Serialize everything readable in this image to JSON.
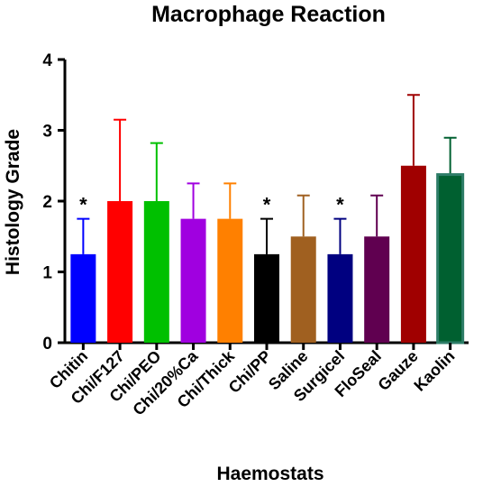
{
  "chart_data": {
    "type": "bar",
    "title": "Macrophage Reaction",
    "xlabel": "Haemostats",
    "ylabel": "Histology Grade",
    "ylim": [
      0,
      4
    ],
    "yticks": [
      "0",
      "1",
      "2",
      "3",
      "4"
    ],
    "grid": false,
    "legend": "none",
    "categories": [
      "Chitin",
      "Chi/F127",
      "Chi/PEO",
      "Chi/20%Ca",
      "Chi/Thick",
      "Chi/PP",
      "Saline",
      "Surgicel",
      "FloSeal",
      "Gauze",
      "Kaolin"
    ],
    "values": [
      1.25,
      2.0,
      2.0,
      1.75,
      1.75,
      1.25,
      1.5,
      1.25,
      1.5,
      2.5,
      2.375
    ],
    "errors": [
      0.5,
      1.15,
      0.82,
      0.5,
      0.5,
      0.5,
      0.58,
      0.5,
      0.58,
      1.0,
      0.52
    ],
    "colors": [
      "#0000ff",
      "#ff0000",
      "#00c000",
      "#a000e0",
      "#ff8000",
      "#000000",
      "#a06020",
      "#000080",
      "#600050",
      "#a00000",
      "#006030"
    ],
    "annotations": [
      "*",
      "",
      "",
      "",
      "",
      "*",
      "",
      "*",
      "",
      "",
      ""
    ]
  }
}
